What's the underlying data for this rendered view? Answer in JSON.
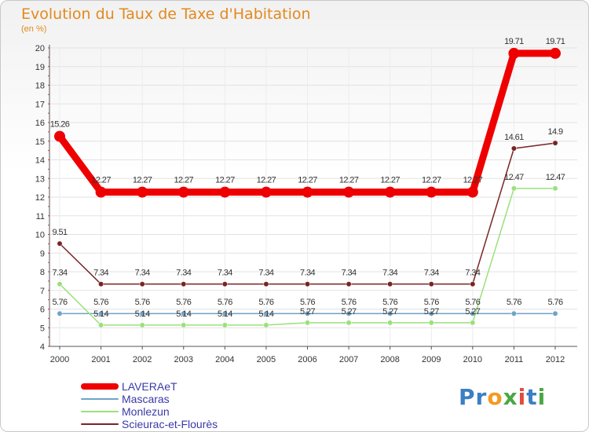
{
  "chart_data": {
    "type": "line",
    "title": "Evolution du Taux de Taxe d'Habitation",
    "unit_label": "(en %)",
    "x": [
      "2000",
      "2001",
      "2002",
      "2003",
      "2004",
      "2005",
      "2006",
      "2007",
      "2008",
      "2009",
      "2010",
      "2011",
      "2012"
    ],
    "ylim": [
      4,
      20
    ],
    "yticks": [
      "4",
      "5",
      "6",
      "7",
      "8",
      "9",
      "10",
      "11",
      "12",
      "13",
      "14",
      "15",
      "16",
      "17",
      "18",
      "19",
      "20"
    ],
    "series": [
      {
        "name": "LAVERAeT",
        "color": "#ef0000",
        "values": [
          15.26,
          12.27,
          12.27,
          12.27,
          12.27,
          12.27,
          12.27,
          12.27,
          12.27,
          12.27,
          12.27,
          19.71,
          19.71
        ],
        "labels": [
          "15.26",
          "12.27",
          "12.27",
          "12.27",
          "12.27",
          "12.27",
          "12.27",
          "12.27",
          "12.27",
          "12.27",
          "12.27",
          "19.71",
          "19.71"
        ]
      },
      {
        "name": "Mascaras",
        "color": "#6fa3c9",
        "values": [
          5.76,
          5.76,
          5.76,
          5.76,
          5.76,
          5.76,
          5.76,
          5.76,
          5.76,
          5.76,
          5.76,
          5.76,
          5.76
        ],
        "labels": [
          "5.76",
          "5.76",
          "5.76",
          "5.76",
          "5.76",
          "5.76",
          "5.76",
          "5.76",
          "5.76",
          "5.76",
          "5.76",
          "5.76",
          "5.76"
        ]
      },
      {
        "name": "Monlezun",
        "color": "#9be07a",
        "values": [
          7.34,
          5.14,
          5.14,
          5.14,
          5.14,
          5.14,
          5.27,
          5.27,
          5.27,
          5.27,
          5.27,
          12.47,
          12.47
        ],
        "labels": [
          "7.34",
          "5.14",
          "5.14",
          "5.14",
          "5.14",
          "5.14",
          "5.27",
          "5.27",
          "5.27",
          "5.27",
          "5.27",
          "12.47",
          "12.47"
        ]
      },
      {
        "name": "Scieurac-et-Flourès",
        "color": "#7a2323",
        "values": [
          9.51,
          7.34,
          7.34,
          7.34,
          7.34,
          7.34,
          7.34,
          7.34,
          7.34,
          7.34,
          7.34,
          14.61,
          14.9
        ],
        "labels": [
          "9.51",
          "7.34",
          "7.34",
          "7.34",
          "7.34",
          "7.34",
          "7.34",
          "7.34",
          "7.34",
          "7.34",
          "7.34",
          "14.61",
          "14.9"
        ]
      }
    ]
  },
  "logo": {
    "p1": "Pr",
    "p2": "o",
    "p3": "x",
    "p4": "i",
    "p5": "t",
    "p6": "i"
  }
}
